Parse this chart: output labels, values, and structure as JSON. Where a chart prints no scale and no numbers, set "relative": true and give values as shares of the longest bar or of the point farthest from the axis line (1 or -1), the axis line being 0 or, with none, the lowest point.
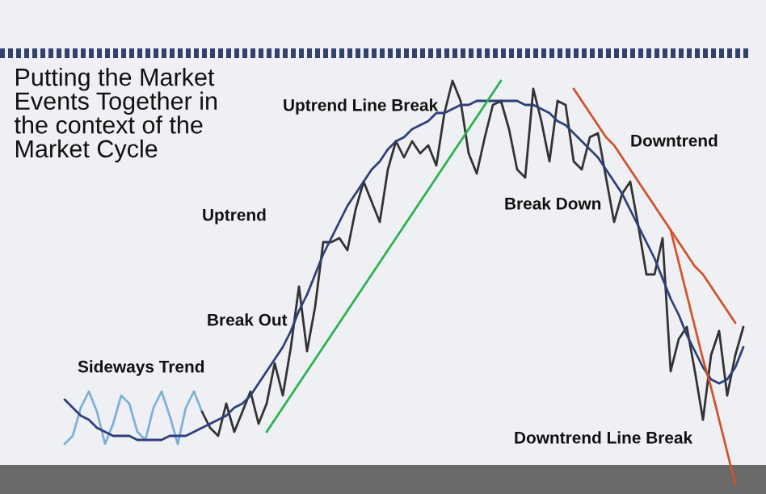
{
  "chart_data": {
    "type": "line",
    "relative": true,
    "categories": [
      null,
      null,
      null,
      null,
      null,
      null,
      null,
      null,
      null,
      null,
      null,
      null,
      null,
      null,
      null,
      null,
      null,
      null,
      null,
      null,
      null,
      null,
      null,
      null,
      null,
      null,
      null,
      null,
      null,
      null,
      null,
      null,
      null,
      null,
      null,
      null,
      null,
      null,
      null,
      null,
      null,
      null,
      null,
      null,
      null,
      null,
      null,
      null,
      null,
      null,
      null,
      null,
      null,
      null,
      null,
      null,
      null,
      null,
      null,
      null,
      null,
      null,
      null,
      null,
      null,
      null,
      null,
      null,
      null,
      null,
      null,
      null,
      null,
      null,
      null,
      null,
      null,
      null,
      null,
      null,
      null,
      null,
      null,
      null,
      null
    ],
    "series": [
      {
        "color": "#7fb0d8",
        "values": [
          0.1,
          0.12,
          0.19,
          0.23,
          0.18,
          0.1,
          0.15,
          0.22,
          0.2,
          0.13,
          0.11,
          0.19,
          0.23,
          0.17,
          0.1,
          0.19,
          0.23,
          0.18,
          null,
          null,
          null,
          null,
          null,
          null,
          null,
          null,
          null,
          null,
          null,
          null,
          null,
          null,
          null,
          null,
          null,
          null,
          null,
          null,
          null,
          null,
          null,
          null,
          null,
          null,
          null,
          null,
          null,
          null,
          null,
          null,
          null,
          null,
          null,
          null,
          null,
          null,
          null,
          null,
          null,
          null,
          null,
          null,
          null,
          null,
          null,
          null,
          null,
          null,
          null,
          null,
          null,
          null,
          null,
          null,
          null,
          null,
          null,
          null,
          null,
          null,
          null,
          null,
          null,
          null,
          null
        ]
      },
      {
        "color": "#333333",
        "values": [
          null,
          null,
          null,
          null,
          null,
          null,
          null,
          null,
          null,
          null,
          null,
          null,
          null,
          null,
          null,
          null,
          null,
          0.18,
          0.14,
          0.12,
          0.2,
          0.13,
          0.18,
          0.23,
          0.15,
          0.2,
          0.3,
          0.22,
          0.34,
          0.49,
          0.33,
          0.44,
          0.6,
          0.6,
          0.61,
          0.58,
          0.68,
          0.75,
          0.7,
          0.65,
          0.78,
          0.85,
          0.81,
          0.85,
          0.82,
          0.84,
          0.79,
          0.92,
          1.0,
          0.95,
          0.82,
          0.77,
          0.86,
          0.94,
          0.95,
          0.88,
          0.78,
          0.76,
          0.98,
          0.9,
          0.8,
          0.95,
          0.94,
          0.8,
          0.78,
          0.86,
          0.87,
          0.76,
          0.65,
          0.72,
          0.75,
          0.64,
          0.52,
          0.52,
          0.61,
          0.28,
          0.36,
          0.39,
          0.28,
          0.16,
          0.32,
          0.38,
          0.22,
          0.32,
          0.39
        ]
      },
      {
        "color": "#2e3f7a",
        "values": [
          0.21,
          0.19,
          0.17,
          0.16,
          0.14,
          0.13,
          0.12,
          0.12,
          0.12,
          0.11,
          0.11,
          0.11,
          0.11,
          0.12,
          0.12,
          0.12,
          0.13,
          0.14,
          0.15,
          0.16,
          0.17,
          0.19,
          0.2,
          0.22,
          0.25,
          0.28,
          0.31,
          0.34,
          0.38,
          0.43,
          0.47,
          0.52,
          0.57,
          0.61,
          0.65,
          0.69,
          0.72,
          0.75,
          0.78,
          0.8,
          0.83,
          0.85,
          0.86,
          0.88,
          0.89,
          0.9,
          0.92,
          0.92,
          0.93,
          0.94,
          0.94,
          0.95,
          0.95,
          0.95,
          0.95,
          0.95,
          0.95,
          0.94,
          0.94,
          0.93,
          0.92,
          0.9,
          0.89,
          0.87,
          0.85,
          0.83,
          0.81,
          0.78,
          0.75,
          0.72,
          0.68,
          0.64,
          0.6,
          0.56,
          0.51,
          0.46,
          0.42,
          0.37,
          0.33,
          0.29,
          0.26,
          0.25,
          0.26,
          0.29,
          0.34
        ]
      },
      {
        "color": "#2bb34a",
        "values": [
          null,
          null,
          null,
          null,
          null,
          null,
          null,
          null,
          null,
          null,
          null,
          null,
          null,
          null,
          null,
          null,
          null,
          null,
          null,
          null,
          null,
          null,
          null,
          null,
          null,
          0.13,
          0.16,
          0.19,
          0.22,
          0.25,
          0.28,
          0.31,
          0.34,
          0.37,
          0.4,
          0.43,
          0.46,
          0.49,
          0.52,
          0.55,
          0.58,
          0.61,
          0.64,
          0.67,
          0.7,
          0.73,
          0.76,
          0.79,
          0.82,
          0.85,
          0.88,
          0.91,
          0.94,
          0.97,
          1.0,
          null,
          null,
          null,
          null,
          null,
          null,
          null,
          null,
          null,
          null,
          null,
          null,
          null,
          null,
          null,
          null,
          null,
          null,
          null,
          null,
          null,
          null,
          null,
          null,
          null,
          null,
          null,
          null,
          null,
          null
        ]
      },
      {
        "color": "#d2522a",
        "values": [
          null,
          null,
          null,
          null,
          null,
          null,
          null,
          null,
          null,
          null,
          null,
          null,
          null,
          null,
          null,
          null,
          null,
          null,
          null,
          null,
          null,
          null,
          null,
          null,
          null,
          null,
          null,
          null,
          null,
          null,
          null,
          null,
          null,
          null,
          null,
          null,
          null,
          null,
          null,
          null,
          null,
          null,
          null,
          null,
          null,
          null,
          null,
          null,
          null,
          null,
          null,
          null,
          null,
          null,
          null,
          null,
          null,
          null,
          null,
          null,
          null,
          null,
          null,
          0.98,
          0.95,
          0.92,
          0.89,
          0.86,
          0.84,
          0.81,
          0.78,
          0.75,
          0.72,
          0.69,
          0.66,
          0.63,
          0.6,
          0.57,
          0.54,
          0.52,
          0.49,
          0.46,
          0.43,
          0.4,
          null
        ]
      },
      {
        "color": "#d2522a",
        "values": [
          null,
          null,
          null,
          null,
          null,
          null,
          null,
          null,
          null,
          null,
          null,
          null,
          null,
          null,
          null,
          null,
          null,
          null,
          null,
          null,
          null,
          null,
          null,
          null,
          null,
          null,
          null,
          null,
          null,
          null,
          null,
          null,
          null,
          null,
          null,
          null,
          null,
          null,
          null,
          null,
          null,
          null,
          null,
          null,
          null,
          null,
          null,
          null,
          null,
          null,
          null,
          null,
          null,
          null,
          null,
          null,
          null,
          null,
          null,
          null,
          null,
          null,
          null,
          null,
          null,
          null,
          null,
          null,
          null,
          null,
          null,
          null,
          null,
          null,
          null,
          0.63,
          0.55,
          0.47,
          0.39,
          0.31,
          0.24,
          0.16,
          0.08,
          0.0,
          null
        ]
      }
    ],
    "annotations": [
      "Putting the Market Events Together in the context of the Market Cycle",
      "Sideways Trend",
      "Break Out",
      "Uptrend",
      "Uptrend Line Break",
      "Break Down",
      "Downtrend",
      "Downtrend Line Break"
    ],
    "legend": false
  }
}
